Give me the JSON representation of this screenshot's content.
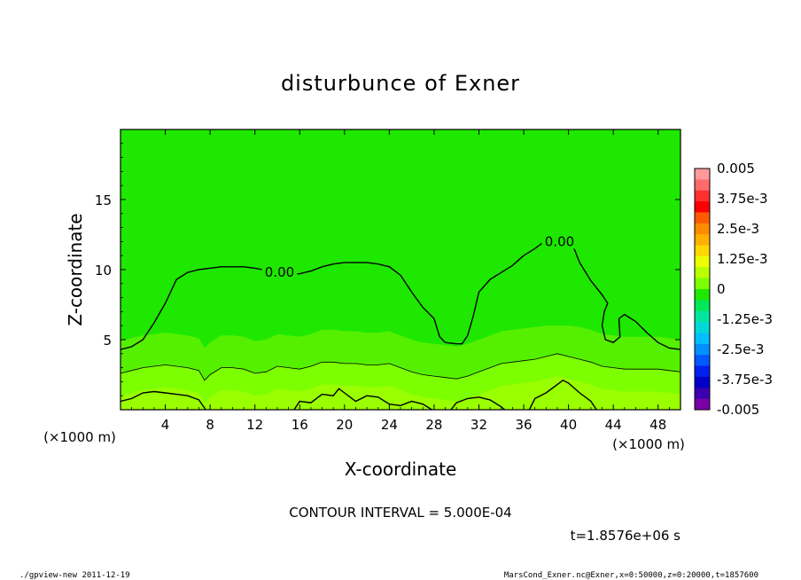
{
  "chart_data": {
    "type": "heatmap",
    "title": "disturbunce of Exner",
    "xlabel": "X-coordinate",
    "ylabel": "Z-coordinate",
    "x_unit": "(×1000 m)",
    "y_unit": "(×1000 m)",
    "xlim": [
      0,
      50
    ],
    "ylim": [
      0,
      20
    ],
    "x_ticks": [
      4,
      8,
      12,
      16,
      20,
      24,
      28,
      32,
      36,
      40,
      44,
      48
    ],
    "x_tick_labels": [
      "4",
      "8",
      "12",
      "16",
      "20",
      "24",
      "28",
      "32",
      "36",
      "40",
      "44",
      "48"
    ],
    "y_ticks": [
      5,
      10,
      15
    ],
    "y_tick_labels": [
      "5",
      "10",
      "15"
    ],
    "contour_interval_text": "CONTOUR INTERVAL = 5.000E-04",
    "time_text": "t=1.8576e+06 s",
    "contour_labels": [
      "0.00",
      "0.00"
    ],
    "colorbar": {
      "min": -0.005,
      "max": 0.005,
      "tick_labels": [
        "0.005",
        "3.75e-3",
        "2.5e-3",
        "1.25e-3",
        "0",
        "-1.25e-3",
        "-2.5e-3",
        "-3.75e-3",
        "-0.005"
      ],
      "colors": [
        "#ff9a9a",
        "#ff6b6b",
        "#ff3030",
        "#ff0000",
        "#ff5a00",
        "#ff8c00",
        "#ffb000",
        "#ffd800",
        "#ecff00",
        "#b8ff00",
        "#7cff00",
        "#1ee800",
        "#00e85a",
        "#00e6a0",
        "#00d8d8",
        "#00c0ff",
        "#0090ff",
        "#0058ff",
        "#0020f0",
        "#0000c8",
        "#3a00b0",
        "#7a00a8"
      ]
    },
    "zero_contour": [
      [
        0,
        4.3
      ],
      [
        1,
        4.5
      ],
      [
        2,
        5.0
      ],
      [
        3,
        6.2
      ],
      [
        4,
        7.6
      ],
      [
        5,
        9.3
      ],
      [
        6,
        9.8
      ],
      [
        7,
        10.0
      ],
      [
        8,
        10.1
      ],
      [
        9,
        10.2
      ],
      [
        10,
        10.2
      ],
      [
        11,
        10.2
      ],
      [
        12,
        10.1
      ],
      [
        14,
        9.8
      ],
      [
        15,
        9.7
      ],
      [
        16,
        9.7
      ],
      [
        17,
        9.9
      ],
      [
        18,
        10.2
      ],
      [
        19,
        10.4
      ],
      [
        20,
        10.5
      ],
      [
        21,
        10.5
      ],
      [
        22,
        10.5
      ],
      [
        23,
        10.4
      ],
      [
        24,
        10.2
      ],
      [
        25,
        9.6
      ],
      [
        26,
        8.4
      ],
      [
        27,
        7.3
      ],
      [
        28,
        6.5
      ],
      [
        28.5,
        5.2
      ],
      [
        29,
        4.8
      ],
      [
        30,
        4.7
      ],
      [
        30.5,
        4.7
      ],
      [
        31,
        5.3
      ],
      [
        31.5,
        6.7
      ],
      [
        32,
        8.4
      ],
      [
        33,
        9.3
      ],
      [
        34,
        9.8
      ],
      [
        35,
        10.3
      ],
      [
        36,
        11.0
      ],
      [
        37,
        11.5
      ],
      [
        38,
        12.1
      ],
      [
        39,
        12.0
      ],
      [
        40,
        11.9
      ],
      [
        40.5,
        11.5
      ],
      [
        41,
        10.5
      ],
      [
        42,
        9.2
      ],
      [
        43,
        8.2
      ],
      [
        43.5,
        7.6
      ],
      [
        43.2,
        7.0
      ],
      [
        43,
        6.0
      ],
      [
        43.3,
        5.0
      ],
      [
        44,
        4.8
      ],
      [
        44.6,
        5.2
      ],
      [
        44.5,
        6.5
      ],
      [
        45,
        6.8
      ],
      [
        46,
        6.3
      ],
      [
        47,
        5.5
      ],
      [
        48,
        4.8
      ],
      [
        49,
        4.4
      ],
      [
        50,
        4.3
      ]
    ],
    "lower_contour": [
      [
        0,
        2.6
      ],
      [
        1,
        2.8
      ],
      [
        2,
        3.0
      ],
      [
        3,
        3.1
      ],
      [
        4,
        3.2
      ],
      [
        5,
        3.1
      ],
      [
        6,
        3.0
      ],
      [
        7,
        2.8
      ],
      [
        7.5,
        2.1
      ],
      [
        8,
        2.5
      ],
      [
        9,
        3.0
      ],
      [
        10,
        3.0
      ],
      [
        11,
        2.9
      ],
      [
        12,
        2.6
      ],
      [
        13,
        2.7
      ],
      [
        14,
        3.1
      ],
      [
        15,
        3.0
      ],
      [
        16,
        2.9
      ],
      [
        17,
        3.1
      ],
      [
        18,
        3.4
      ],
      [
        19,
        3.4
      ],
      [
        20,
        3.3
      ],
      [
        21,
        3.3
      ],
      [
        22,
        3.2
      ],
      [
        23,
        3.2
      ],
      [
        24,
        3.3
      ],
      [
        25,
        3.0
      ],
      [
        26,
        2.7
      ],
      [
        27,
        2.5
      ],
      [
        28,
        2.4
      ],
      [
        29,
        2.3
      ],
      [
        30,
        2.2
      ],
      [
        31,
        2.4
      ],
      [
        32,
        2.7
      ],
      [
        33,
        3.0
      ],
      [
        34,
        3.3
      ],
      [
        35,
        3.4
      ],
      [
        36,
        3.5
      ],
      [
        37,
        3.6
      ],
      [
        38,
        3.8
      ],
      [
        39,
        4.0
      ],
      [
        40,
        3.8
      ],
      [
        41,
        3.6
      ],
      [
        42,
        3.4
      ],
      [
        43,
        3.1
      ],
      [
        44,
        3.0
      ],
      [
        45,
        2.9
      ],
      [
        46,
        2.9
      ],
      [
        47,
        2.9
      ],
      [
        48,
        2.9
      ],
      [
        49,
        2.8
      ],
      [
        50,
        2.7
      ]
    ],
    "bottom_contours": [
      [
        [
          0,
          0.6
        ],
        [
          1,
          0.8
        ],
        [
          2,
          1.2
        ],
        [
          3,
          1.3
        ],
        [
          4,
          1.2
        ],
        [
          5,
          1.1
        ],
        [
          6,
          1.0
        ],
        [
          7,
          0.7
        ],
        [
          7.6,
          0
        ]
      ],
      [
        [
          15.5,
          0
        ],
        [
          16,
          0.6
        ],
        [
          17,
          0.5
        ],
        [
          18,
          1.1
        ],
        [
          19,
          1.0
        ],
        [
          19.5,
          1.5
        ],
        [
          20,
          1.2
        ],
        [
          21,
          0.6
        ],
        [
          22,
          1.0
        ],
        [
          23,
          0.9
        ],
        [
          24,
          0.4
        ],
        [
          25,
          0.3
        ],
        [
          26,
          0.6
        ],
        [
          27,
          0.4
        ],
        [
          27.8,
          0
        ]
      ],
      [
        [
          29.5,
          0
        ],
        [
          30,
          0.5
        ],
        [
          31,
          0.8
        ],
        [
          32,
          0.9
        ],
        [
          33,
          0.7
        ],
        [
          34,
          0.2
        ],
        [
          34.3,
          0
        ]
      ],
      [
        [
          36.5,
          0
        ],
        [
          37,
          0.8
        ],
        [
          38,
          1.2
        ],
        [
          39,
          1.8
        ],
        [
          39.5,
          2.1
        ],
        [
          40,
          1.9
        ],
        [
          41,
          1.2
        ],
        [
          42,
          0.6
        ],
        [
          42.5,
          0
        ]
      ]
    ]
  },
  "footer": {
    "left": "./gpview-new   2011-12-19",
    "right": "MarsCond_Exner.nc@Exner,x=0:50000,z=0:20000,t=1857600"
  }
}
